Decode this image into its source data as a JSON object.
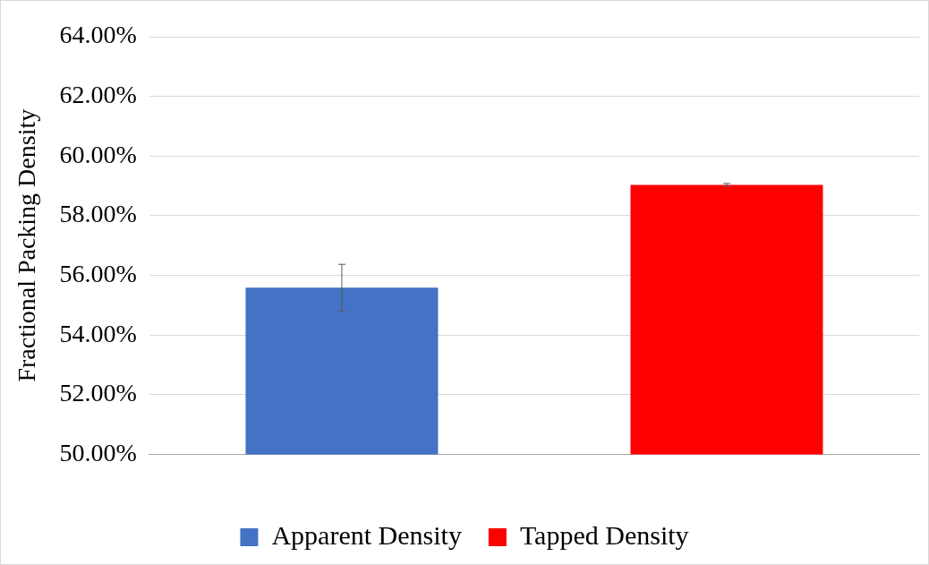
{
  "chart_data": {
    "type": "bar",
    "ylabel": "Fractional Packing Density",
    "categories": [
      null
    ],
    "series": [
      {
        "name": "Apparent Density",
        "color": "#4472c4",
        "values": [
          55.59
        ],
        "errors": [
          0.78
        ]
      },
      {
        "name": "Tapped Density",
        "color": "#ff0000",
        "values": [
          59.03
        ],
        "errors": [
          0.05
        ]
      }
    ],
    "ylim": [
      50,
      64
    ],
    "yticks": [
      {
        "value": 50,
        "label": "50.00%"
      },
      {
        "value": 52,
        "label": "52.00%"
      },
      {
        "value": 54,
        "label": "54.00%"
      },
      {
        "value": 56,
        "label": "56.00%"
      },
      {
        "value": 58,
        "label": "58.00%"
      },
      {
        "value": 60,
        "label": "60.00%"
      },
      {
        "value": 62,
        "label": "62.00%"
      },
      {
        "value": 64,
        "label": "64.00%"
      }
    ],
    "grid": "y",
    "legend": "bottom"
  }
}
